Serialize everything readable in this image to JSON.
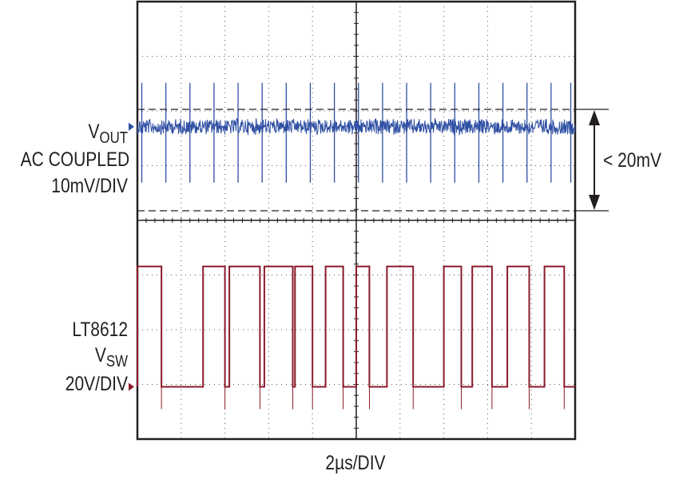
{
  "chart_data": {
    "type": "line",
    "title": "",
    "xlabel": "2µs/DIV",
    "grid": true,
    "grid_divisions": {
      "x": 10,
      "y": 8
    },
    "series": [
      {
        "name_main": "V",
        "name_sub": "OUT",
        "name_line2": "AC COUPLED",
        "scale": "10mV/DIV",
        "color": "#2e4fa3",
        "description_values": {
          "peak_to_peak_mV_max": 20,
          "baseline_div": 0
        },
        "spike_times_us": [
          0.2,
          1.3,
          2.4,
          3.5,
          4.6,
          5.7,
          6.8,
          7.9,
          9.0,
          10.1,
          11.2,
          12.3,
          13.4,
          14.5,
          15.6,
          16.7,
          17.8,
          18.9,
          19.8
        ]
      },
      {
        "name_main": "LT8612",
        "name_line2_main": "V",
        "name_line2_sub": "SW",
        "scale": "20V/DIV",
        "color": "#8b1a2a",
        "high_level_div": 2.2,
        "low_level_div": 0,
        "high_intervals_us": [
          [
            0.0,
            1.1
          ],
          [
            3.0,
            4.0
          ],
          [
            4.2,
            5.6
          ],
          [
            5.8,
            7.1
          ],
          [
            7.2,
            8.0
          ],
          [
            8.6,
            9.4
          ],
          [
            10.0,
            10.6
          ],
          [
            11.4,
            12.6
          ],
          [
            14.0,
            14.8
          ],
          [
            15.3,
            16.2
          ],
          [
            16.9,
            17.9
          ],
          [
            18.6,
            19.5
          ]
        ]
      }
    ],
    "annotations": [
      {
        "text": "< 20mV",
        "type": "bracket"
      }
    ]
  }
}
